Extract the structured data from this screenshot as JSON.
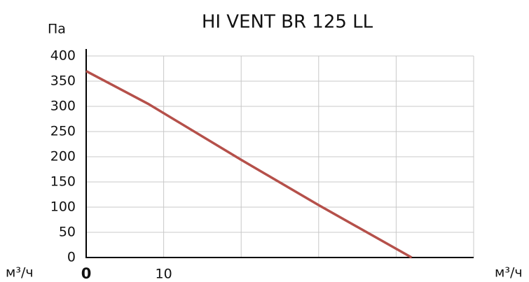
{
  "chart_data": {
    "type": "line",
    "title": "HI VENT BR 125 LL",
    "ylabel": "Па",
    "x_labels": [
      "м³/ч",
      "м³/ч"
    ],
    "x": [
      0,
      8,
      20,
      30,
      42
    ],
    "series": [
      {
        "name": null,
        "color": "#b5504a",
        "values": [
          370,
          305,
          194,
          104,
          0
        ]
      }
    ],
    "xlim": [
      0,
      50
    ],
    "xticks": [
      0,
      10
    ],
    "xgrid": [
      0,
      10,
      20,
      30,
      40,
      50
    ],
    "ylim": [
      0,
      400
    ],
    "yticks": [
      0,
      50,
      100,
      150,
      200,
      250,
      300,
      350,
      400
    ],
    "grid": true
  }
}
